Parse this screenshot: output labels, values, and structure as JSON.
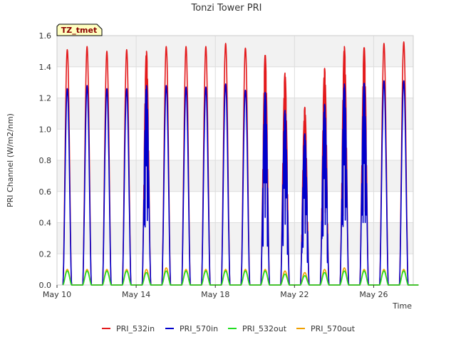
{
  "chart_data": {
    "type": "line",
    "title": "Tonzi Tower PRI",
    "xlabel": "Time",
    "ylabel": "PRI Channel (W/m2/nm)",
    "ylim": [
      0,
      1.6
    ],
    "xlim": [
      "May 10",
      "May 28"
    ],
    "x_ticks": [
      "May 10",
      "May 14",
      "May 18",
      "May 22",
      "May 26"
    ],
    "y_ticks": [
      "0.0",
      "0.2",
      "0.4",
      "0.6",
      "0.8",
      "1.0",
      "1.2",
      "1.4",
      "1.6"
    ],
    "badge": "TZ_tmet",
    "legend_position": "bottom",
    "grid": true,
    "days": [
      10,
      11,
      12,
      13,
      14,
      15,
      16,
      17,
      18,
      19,
      20,
      21,
      22,
      23,
      24,
      25,
      26,
      27
    ],
    "series": [
      {
        "name": "PRI_532in",
        "color": "#e31a1c",
        "daily_peak": [
          1.51,
          1.53,
          1.5,
          1.51,
          1.5,
          1.53,
          1.53,
          1.53,
          1.55,
          1.52,
          1.48,
          1.36,
          1.14,
          1.39,
          1.53,
          1.53,
          1.55,
          1.56
        ]
      },
      {
        "name": "PRI_570in",
        "color": "#0000cc",
        "daily_peak": [
          1.26,
          1.28,
          1.26,
          1.26,
          1.28,
          1.28,
          1.27,
          1.27,
          1.29,
          1.25,
          1.24,
          1.12,
          0.97,
          1.16,
          1.29,
          1.3,
          1.31,
          1.31
        ]
      },
      {
        "name": "PRI_532out",
        "color": "#22dd22",
        "daily_peak": [
          0.09,
          0.09,
          0.09,
          0.09,
          0.08,
          0.09,
          0.09,
          0.09,
          0.09,
          0.09,
          0.09,
          0.07,
          0.06,
          0.08,
          0.09,
          0.09,
          0.09,
          0.09
        ]
      },
      {
        "name": "PRI_570out",
        "color": "#f0a000",
        "daily_peak": [
          0.1,
          0.1,
          0.1,
          0.1,
          0.1,
          0.11,
          0.1,
          0.1,
          0.1,
          0.1,
          0.1,
          0.09,
          0.08,
          0.1,
          0.11,
          0.1,
          0.1,
          0.1
        ]
      }
    ]
  }
}
